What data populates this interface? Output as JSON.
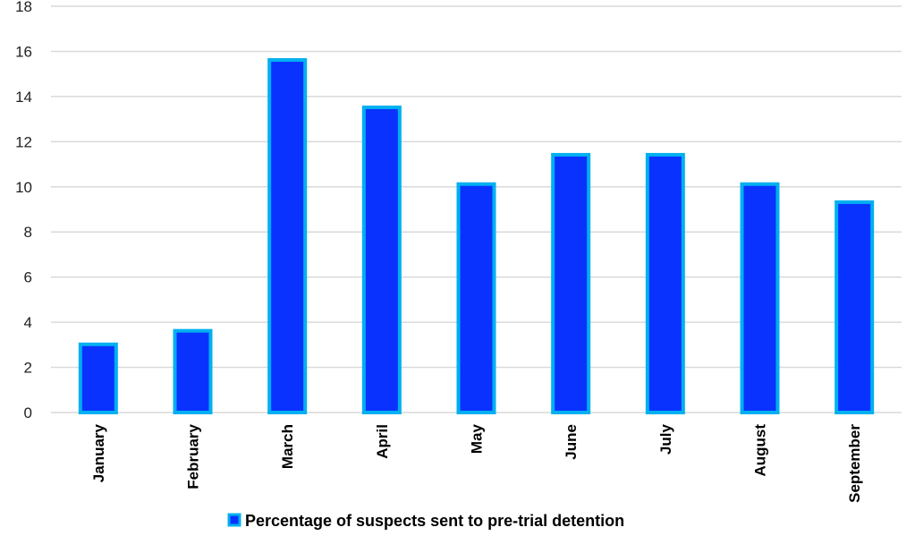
{
  "chart_data": {
    "type": "bar",
    "title": "",
    "xlabel": "",
    "ylabel": "",
    "categories": [
      "January",
      "February",
      "March",
      "April",
      "May",
      "June",
      "July",
      "August",
      "September"
    ],
    "series": [
      {
        "name": "Percentage of suspects sent to pre-trial detention",
        "values": [
          3.1,
          3.7,
          15.7,
          13.6,
          10.2,
          11.5,
          11.5,
          10.2,
          9.4
        ]
      }
    ],
    "ylim": [
      0,
      18
    ],
    "yticks": [
      "0",
      "2",
      "4",
      "6",
      "8",
      "10",
      "12",
      "14",
      "16",
      "18"
    ],
    "grid": true,
    "legend": "bottom",
    "colors": {
      "fill": "#0a32ff",
      "border": "#00b0f0",
      "grid": "#d9d9d9"
    }
  }
}
